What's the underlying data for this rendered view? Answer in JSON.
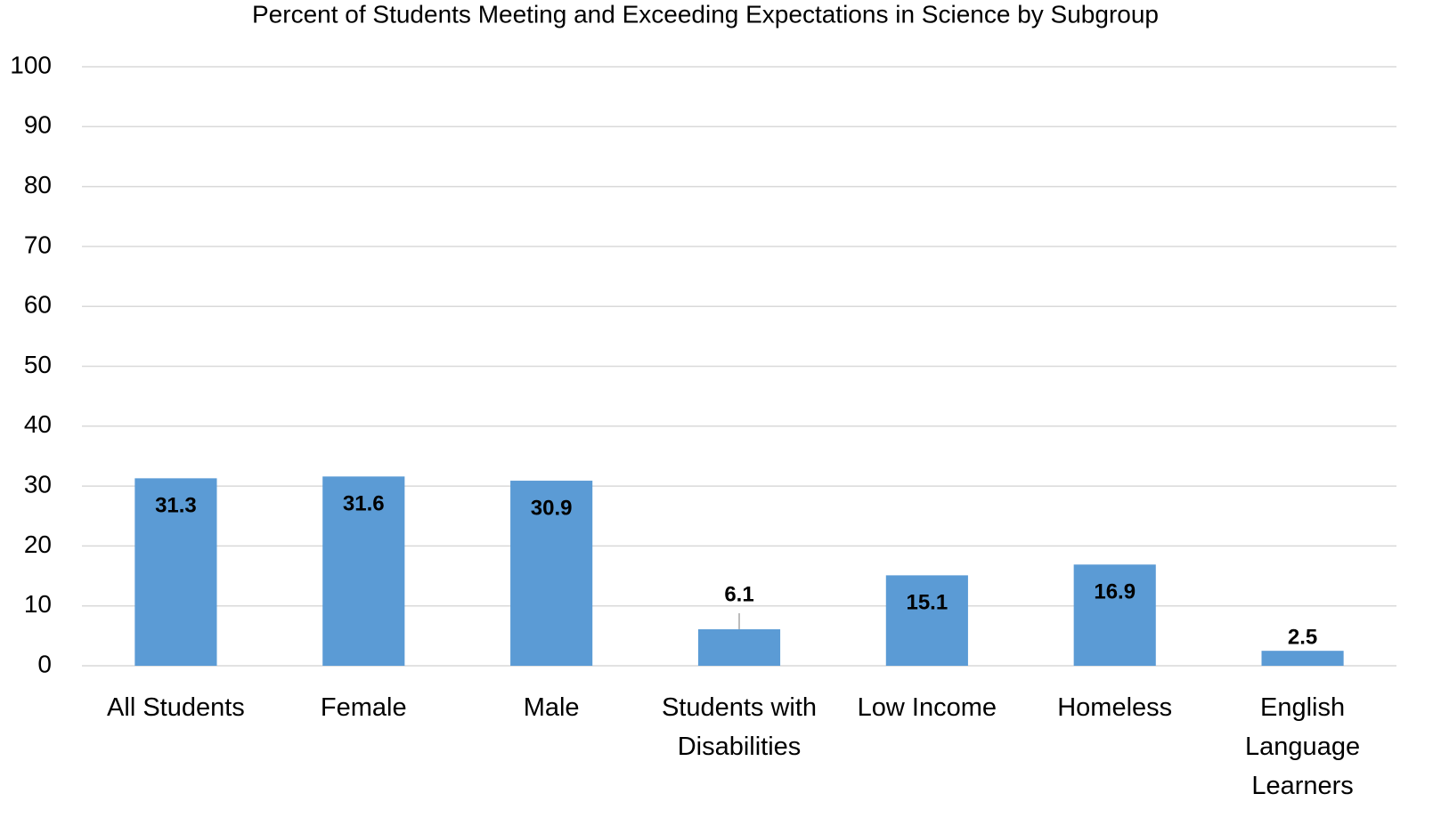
{
  "chart_data": {
    "type": "bar",
    "title": "Percent of Students Meeting and Exceeding Expectations in Science by Subgroup",
    "categories": [
      "All Students",
      "Female",
      "Male",
      "Students with Disabilities",
      "Low Income",
      "Homeless",
      "English Language Learners"
    ],
    "values": [
      31.3,
      31.6,
      30.9,
      6.1,
      15.1,
      16.9,
      2.5
    ],
    "color": "#5b9bd5",
    "ylim": [
      0,
      100
    ],
    "yticks": [
      0,
      10,
      20,
      30,
      40,
      50,
      60,
      70,
      80,
      90,
      100
    ],
    "grid": true
  }
}
